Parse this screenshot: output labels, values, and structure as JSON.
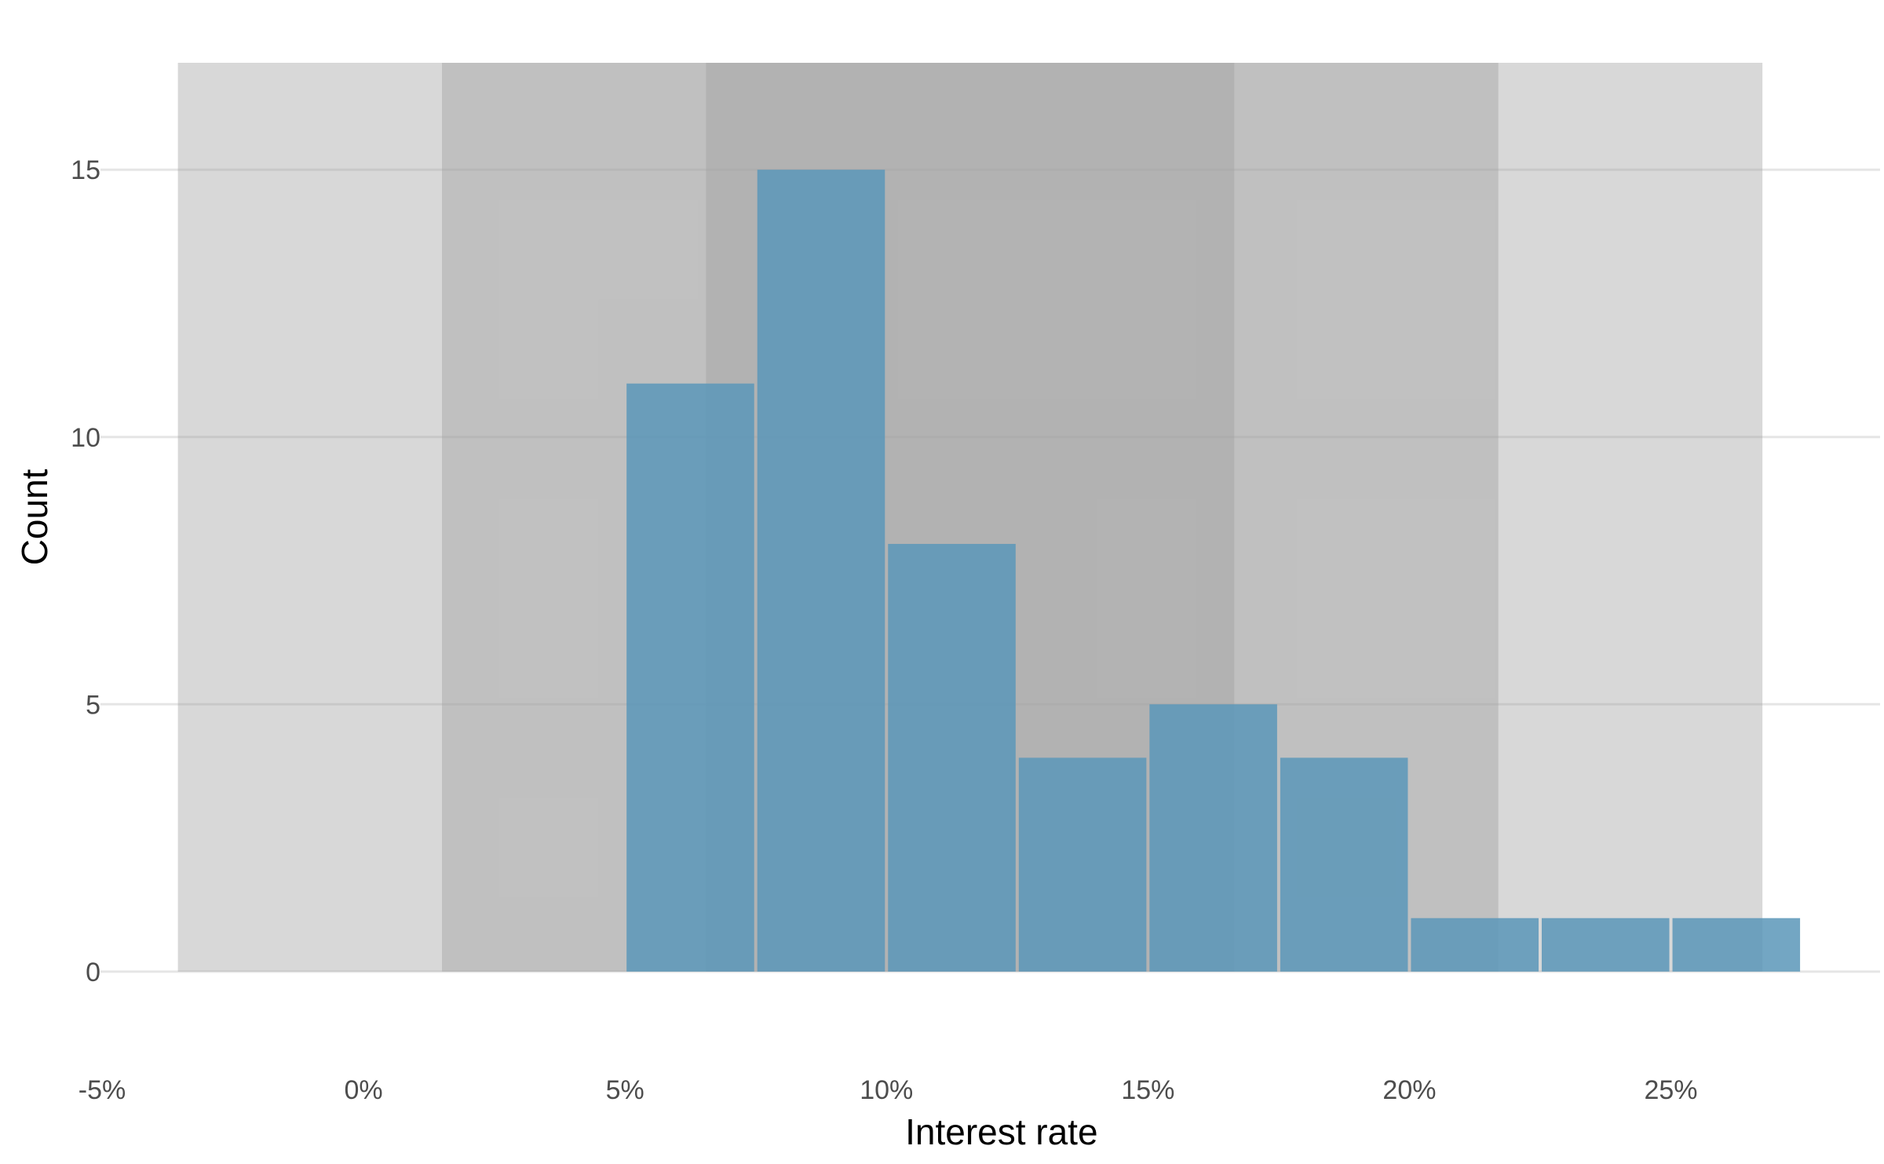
{
  "chart_data": {
    "type": "bar",
    "xlabel": "Interest rate",
    "ylabel": "Count",
    "xlim": [
      -5,
      29
    ],
    "ylim": [
      -1.5,
      17
    ],
    "x_ticks": [
      -5,
      0,
      5,
      10,
      15,
      20,
      25
    ],
    "x_tick_labels": [
      "-5%",
      "0%",
      "5%",
      "10%",
      "15%",
      "20%",
      "25%"
    ],
    "y_ticks": [
      0,
      5,
      10,
      15
    ],
    "y_tick_labels": [
      "0",
      "5",
      "10",
      "15"
    ],
    "grid": true,
    "bin_width": 2.5,
    "bins": [
      {
        "start": 5.0,
        "end": 7.5,
        "count": 11
      },
      {
        "start": 7.5,
        "end": 10.0,
        "count": 15
      },
      {
        "start": 10.0,
        "end": 12.5,
        "count": 8
      },
      {
        "start": 12.5,
        "end": 15.0,
        "count": 4
      },
      {
        "start": 15.0,
        "end": 17.5,
        "count": 5
      },
      {
        "start": 17.5,
        "end": 20.0,
        "count": 4
      },
      {
        "start": 20.0,
        "end": 22.5,
        "count": 1
      },
      {
        "start": 22.5,
        "end": 25.0,
        "count": 1
      },
      {
        "start": 25.0,
        "end": 27.5,
        "count": 1
      }
    ],
    "shaded_bands": [
      {
        "from": -3.55,
        "to": 26.75
      },
      {
        "from": 1.5,
        "to": 21.7
      },
      {
        "from": 6.55,
        "to": 16.65
      }
    ],
    "bar_color": "#5b97b8",
    "band_color": "#9e9e9e"
  }
}
